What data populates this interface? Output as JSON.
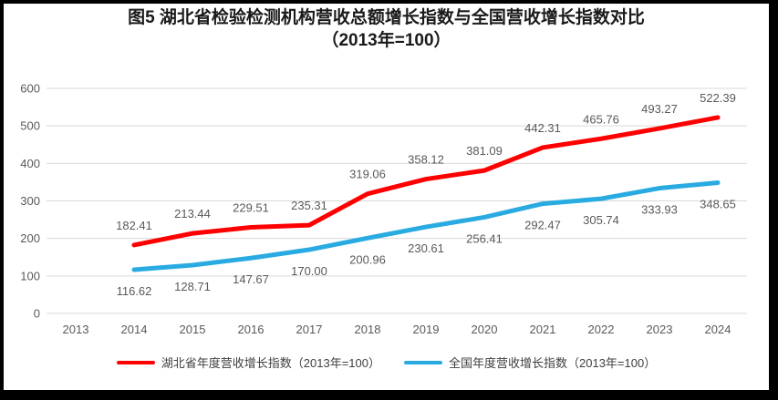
{
  "title": {
    "line1": "图5 湖北省检验检测机构营收总额增长指数与全国营收增长指数对比",
    "line2": "（2013年=100）"
  },
  "chart_data": {
    "type": "line",
    "title": "图5 湖北省检验检测机构营收总额增长指数与全国营收增长指数对比（2013年=100）",
    "categories": [
      "2013",
      "2014",
      "2015",
      "2016",
      "2017",
      "2018",
      "2019",
      "2020",
      "2021",
      "2022",
      "2023",
      "2024"
    ],
    "series": [
      {
        "name": "湖北省年度营收增长指数（2013年=100）",
        "color": "#FF0000",
        "label_position": "above",
        "values": [
          null,
          182.41,
          213.44,
          229.51,
          235.31,
          319.06,
          358.12,
          381.09,
          442.31,
          465.76,
          493.27,
          522.39
        ]
      },
      {
        "name": "全国年度营收增长指数（2013年=100）",
        "color": "#29ABE2",
        "label_position": "below",
        "values": [
          null,
          116.62,
          128.71,
          147.67,
          170.0,
          200.96,
          230.61,
          256.41,
          292.47,
          305.74,
          333.93,
          348.65
        ]
      }
    ],
    "xlabel": "",
    "ylabel": "",
    "ylim": [
      0,
      600
    ],
    "y_ticks": [
      0,
      100,
      200,
      300,
      400,
      500,
      600
    ],
    "grid": true,
    "data_labels": true,
    "legend_position": "bottom",
    "gridline_color": "#D9D9D9",
    "axis_label_color": "#595959",
    "data_label_color": "#595959",
    "background_color": "#FFFFFF",
    "frame_color": "#000000"
  }
}
